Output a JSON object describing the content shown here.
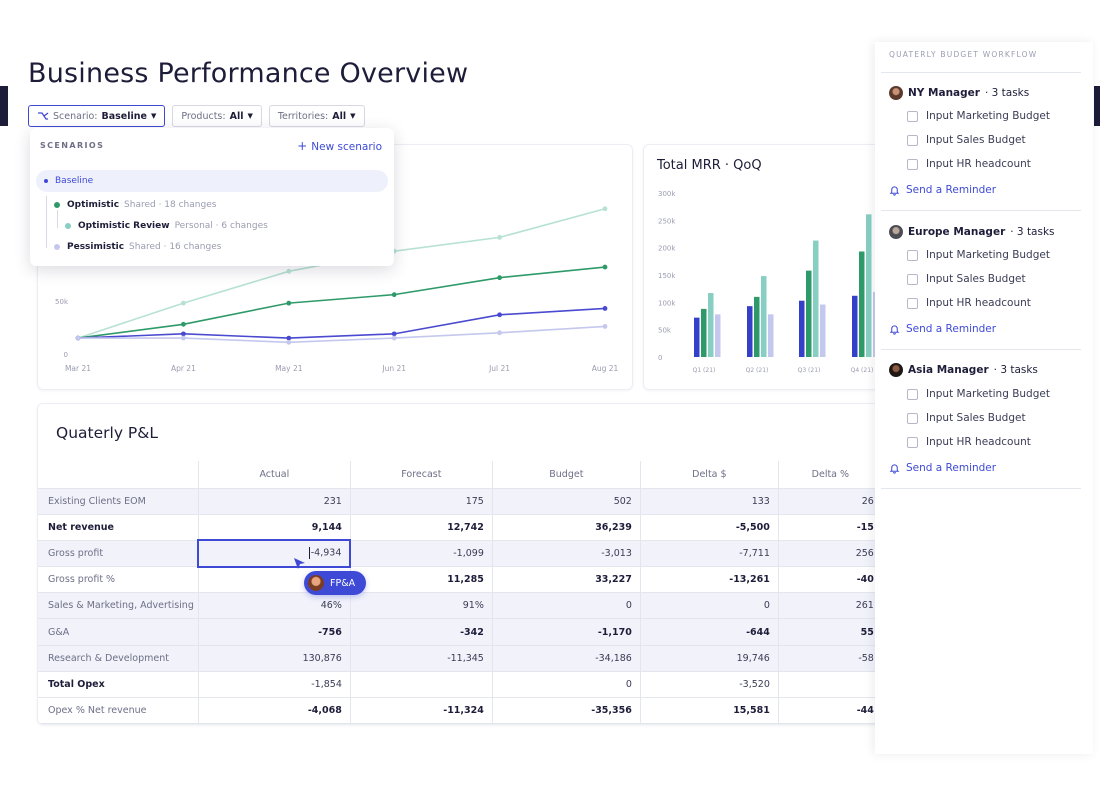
{
  "page": {
    "title": "Business Performance Overview"
  },
  "filters": [
    {
      "prefix": "Scenario: ",
      "value": "Baseline"
    },
    {
      "prefix": "Products: ",
      "value": "All"
    },
    {
      "prefix": "Territories: ",
      "value": "All"
    }
  ],
  "scenarios": {
    "label": "SCENARIOS",
    "new_label": "New scenario",
    "items": [
      {
        "name": "Baseline",
        "meta": "",
        "color": "#3e4ad6"
      },
      {
        "name": "Optimistic",
        "meta": "Shared · 18 changes",
        "color": "#2e9a6a"
      },
      {
        "name": "Optimistic Review",
        "meta": "Personal · 6 changes",
        "color": "#86cfc2"
      },
      {
        "name": "Pessimistic",
        "meta": "Shared · 16 changes",
        "color": "#c5c8ee"
      }
    ]
  },
  "chart_data": [
    {
      "type": "line",
      "title": "",
      "categories": [
        "Mar 21",
        "Apr 21",
        "May 21",
        "Jun 21",
        "Jul 21",
        "Aug 21"
      ],
      "y_ticks": [
        "0",
        "50k",
        "100k"
      ],
      "ylim": [
        0,
        150000
      ],
      "grid": false,
      "series": [
        {
          "values": [
            15000,
            48000,
            78000,
            97000,
            110000,
            137000
          ],
          "color": "#b7e2d2"
        },
        {
          "values": [
            15000,
            28000,
            48000,
            56000,
            72000,
            82000
          ],
          "color": "#2e9a6a"
        },
        {
          "values": [
            15000,
            19000,
            15000,
            19000,
            37000,
            43000
          ],
          "color": "#4a4ad0"
        },
        {
          "values": [
            15000,
            15000,
            11000,
            15000,
            20000,
            26000
          ],
          "color": "#c5c8ee"
        }
      ]
    },
    {
      "type": "bar",
      "title": "Total MRR · QoQ",
      "categories": [
        "Q1 (21)",
        "Q2 (21)",
        "Q3 (21)",
        "Q4 (21)"
      ],
      "y_ticks": [
        "0",
        "50k",
        "100k",
        "150k",
        "200k",
        "250k",
        "300k"
      ],
      "ylim": [
        0,
        300000
      ],
      "grid": false,
      "series": [
        {
          "values": [
            72000,
            93000,
            103000,
            112000
          ],
          "color": "#3440c8"
        },
        {
          "values": [
            88000,
            110000,
            158000,
            193000
          ],
          "color": "#2e9a6a"
        },
        {
          "values": [
            117000,
            148000,
            213000,
            261000
          ],
          "color": "#86cfc2"
        },
        {
          "values": [
            78000,
            78000,
            96000,
            119000
          ],
          "color": "#c5c8ee"
        }
      ]
    }
  ],
  "pl": {
    "title": "Quaterly P&L",
    "columns": [
      "Actual",
      "Forecast",
      "Budget",
      "Delta $",
      "Delta %"
    ],
    "rows": [
      {
        "label": "Existing Clients EOM",
        "cells": [
          "231",
          "175",
          "502",
          "133",
          "26"
        ]
      },
      {
        "label": "Net revenue",
        "cells": [
          "9,144",
          "12,742",
          "36,239",
          "-5,500",
          "-15"
        ]
      },
      {
        "label": "Gross profit",
        "cells": [
          "-4,934",
          "-1,099",
          "-3,013",
          "-7,711",
          "256"
        ]
      },
      {
        "label": "Gross profit %",
        "cells": [
          "",
          "11,285",
          "33,227",
          "-13,261",
          "-40"
        ]
      },
      {
        "label": "Sales & Marketing, Advertising",
        "cells": [
          "46%",
          "91%",
          "0",
          "0",
          "261"
        ]
      },
      {
        "label": "G&A",
        "cells": [
          "-756",
          "-342",
          "-1,170",
          "-644",
          "55"
        ]
      },
      {
        "label": "Research & Development",
        "cells": [
          "130,876",
          "-11,345",
          "-34,186",
          "19,746",
          "-58"
        ]
      },
      {
        "label": "Total Opex",
        "cells": [
          "-1,854",
          "",
          "0",
          "-3,520",
          ""
        ]
      },
      {
        "label": "Opex % Net revenue",
        "cells": [
          "-4,068",
          "-11,324",
          "-35,356",
          "15,581",
          "-44"
        ]
      }
    ],
    "cursor_badge": "FP&A"
  },
  "workflow": {
    "title": "QUATERLY BUDGET WORKFLOW",
    "groups": [
      {
        "manager": "NY Manager",
        "tasks_label": "· 3 tasks",
        "tasks": [
          "Input Marketing Budget",
          "Input Sales Budget",
          "Input HR headcount"
        ],
        "reminder": "Send a Reminder"
      },
      {
        "manager": "Europe Manager",
        "tasks_label": "· 3 tasks",
        "tasks": [
          "Input Marketing Budget",
          "Input Sales Budget",
          "Input HR headcount"
        ],
        "reminder": "Send a Reminder"
      },
      {
        "manager": "Asia Manager",
        "tasks_label": "· 3 tasks",
        "tasks": [
          "Input Marketing Budget",
          "Input Sales Budget",
          "Input HR headcount"
        ],
        "reminder": "Send a Reminder"
      }
    ]
  }
}
